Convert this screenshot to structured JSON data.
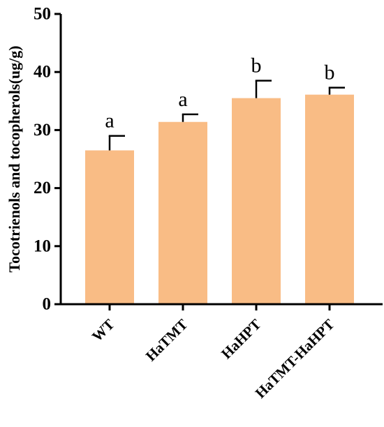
{
  "chart_data": {
    "type": "bar",
    "categories": [
      "WT",
      "HaTMT",
      "HaHPT",
      "HaTMT-HaHPT"
    ],
    "values": [
      26.5,
      31.4,
      35.5,
      36.1
    ],
    "errors": [
      2.5,
      1.3,
      3.0,
      1.2
    ],
    "significance_labels": [
      "a",
      "a",
      "b",
      "b"
    ],
    "title": "",
    "xlabel": "",
    "ylabel": "Tocotrienols and tocopherols(ug/g)",
    "ylim": [
      0,
      50
    ],
    "yticks": [
      0,
      10,
      20,
      30,
      40,
      50
    ],
    "grid": false,
    "bar_color": "#F9BC85",
    "axis_color": "#000000"
  }
}
